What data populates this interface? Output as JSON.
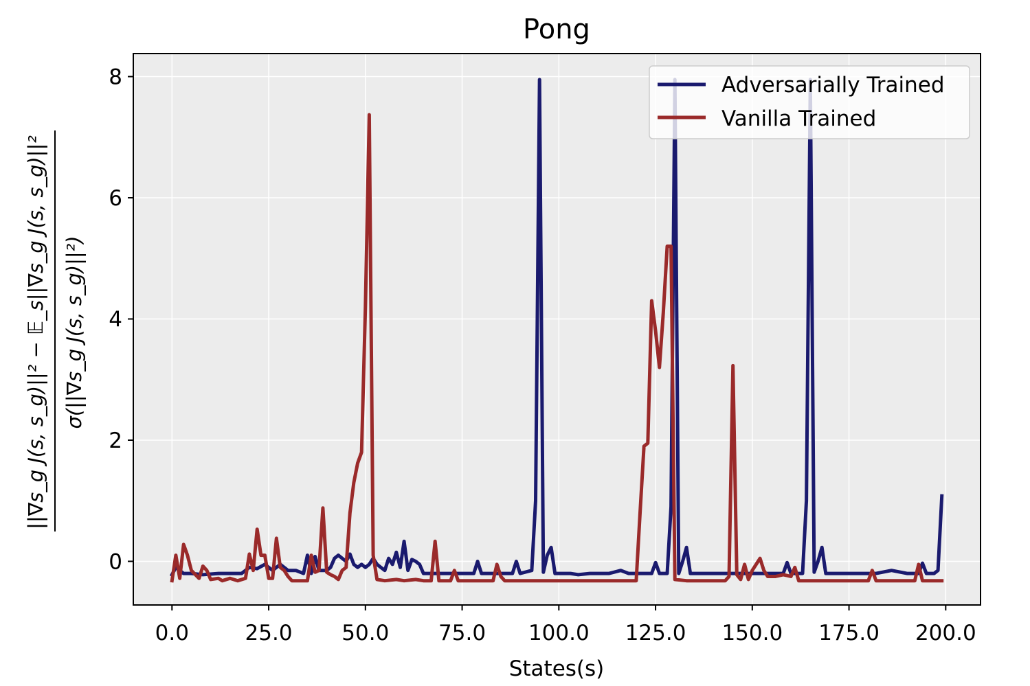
{
  "chart_data": {
    "type": "line",
    "title": "Pong",
    "xlabel": "States(s)",
    "ylabel": {
      "numerator": "||∇s_g J(s, s_g)||² − 𝔼_s||∇s_g J(s, s_g)||²",
      "denominator": "σ(||∇s_g J(s, s_g)||²)"
    },
    "xlim": [
      -10,
      209
    ],
    "ylim": [
      -0.72,
      8.38
    ],
    "xticks": [
      0,
      25,
      50,
      75,
      100,
      125,
      150,
      175,
      200
    ],
    "xtick_labels": [
      "0.0",
      "25.0",
      "50.0",
      "75.0",
      "100.0",
      "125.0",
      "150.0",
      "175.0",
      "200.0"
    ],
    "yticks": [
      0,
      2,
      4,
      6,
      8
    ],
    "ytick_labels": [
      "0",
      "2",
      "4",
      "6",
      "8"
    ],
    "grid": true,
    "legend_position": "top-right",
    "series": [
      {
        "name": "Adversarially Trained",
        "color": "#1a1a6e",
        "points": [
          [
            0,
            -0.22
          ],
          [
            1,
            -0.1
          ],
          [
            2,
            -0.15
          ],
          [
            3,
            -0.2
          ],
          [
            5,
            -0.2
          ],
          [
            8,
            -0.22
          ],
          [
            12,
            -0.2
          ],
          [
            16,
            -0.2
          ],
          [
            18,
            -0.2
          ],
          [
            20,
            -0.1
          ],
          [
            22,
            -0.12
          ],
          [
            24,
            -0.05
          ],
          [
            26,
            -0.15
          ],
          [
            28,
            -0.05
          ],
          [
            30,
            -0.15
          ],
          [
            32,
            -0.15
          ],
          [
            34,
            -0.2
          ],
          [
            35,
            0.1
          ],
          [
            36,
            -0.2
          ],
          [
            37,
            0.08
          ],
          [
            38,
            -0.15
          ],
          [
            40,
            -0.15
          ],
          [
            41,
            -0.1
          ],
          [
            42,
            0.05
          ],
          [
            43,
            0.1
          ],
          [
            44,
            0.05
          ],
          [
            45,
            0.0
          ],
          [
            46,
            0.12
          ],
          [
            47,
            -0.05
          ],
          [
            48,
            -0.1
          ],
          [
            49,
            -0.05
          ],
          [
            50,
            -0.1
          ],
          [
            51,
            -0.05
          ],
          [
            52,
            0.05
          ],
          [
            53,
            -0.05
          ],
          [
            54,
            -0.1
          ],
          [
            55,
            -0.15
          ],
          [
            56,
            0.05
          ],
          [
            57,
            -0.05
          ],
          [
            58,
            0.15
          ],
          [
            59,
            -0.1
          ],
          [
            60,
            0.33
          ],
          [
            61,
            -0.15
          ],
          [
            62,
            0.03
          ],
          [
            63,
            0.0
          ],
          [
            64,
            -0.05
          ],
          [
            65,
            -0.2
          ],
          [
            70,
            -0.2
          ],
          [
            75,
            -0.2
          ],
          [
            78,
            -0.2
          ],
          [
            79,
            0.0
          ],
          [
            80,
            -0.2
          ],
          [
            85,
            -0.2
          ],
          [
            88,
            -0.2
          ],
          [
            89,
            -0.0
          ],
          [
            90,
            -0.2
          ],
          [
            93,
            -0.15
          ],
          [
            94,
            1.0
          ],
          [
            95,
            7.95
          ],
          [
            96,
            -0.18
          ],
          [
            97,
            0.1
          ],
          [
            98,
            0.23
          ],
          [
            99,
            -0.2
          ],
          [
            103,
            -0.2
          ],
          [
            105,
            -0.22
          ],
          [
            108,
            -0.2
          ],
          [
            110,
            -0.2
          ],
          [
            113,
            -0.2
          ],
          [
            116,
            -0.15
          ],
          [
            118,
            -0.2
          ],
          [
            122,
            -0.2
          ],
          [
            124,
            -0.2
          ],
          [
            125,
            -0.02
          ],
          [
            126,
            -0.2
          ],
          [
            128,
            -0.2
          ],
          [
            129,
            0.9
          ],
          [
            130,
            7.95
          ],
          [
            131,
            -0.2
          ],
          [
            132,
            0.0
          ],
          [
            133,
            0.23
          ],
          [
            134,
            -0.2
          ],
          [
            140,
            -0.2
          ],
          [
            143,
            -0.2
          ],
          [
            146,
            -0.2
          ],
          [
            150,
            -0.2
          ],
          [
            155,
            -0.2
          ],
          [
            158,
            -0.2
          ],
          [
            159,
            -0.02
          ],
          [
            160,
            -0.2
          ],
          [
            163,
            -0.2
          ],
          [
            164,
            1.0
          ],
          [
            165,
            7.95
          ],
          [
            166,
            -0.18
          ],
          [
            167,
            0.0
          ],
          [
            168,
            0.23
          ],
          [
            169,
            -0.2
          ],
          [
            175,
            -0.2
          ],
          [
            178,
            -0.2
          ],
          [
            182,
            -0.2
          ],
          [
            186,
            -0.15
          ],
          [
            190,
            -0.2
          ],
          [
            193,
            -0.2
          ],
          [
            194,
            -0.03
          ],
          [
            195,
            -0.2
          ],
          [
            197,
            -0.2
          ],
          [
            198,
            -0.15
          ],
          [
            199,
            1.08
          ]
        ]
      },
      {
        "name": "Vanilla Trained",
        "color": "#9a2a2a",
        "points": [
          [
            0,
            -0.32
          ],
          [
            1,
            0.1
          ],
          [
            2,
            -0.28
          ],
          [
            3,
            0.28
          ],
          [
            4,
            0.1
          ],
          [
            5,
            -0.15
          ],
          [
            7,
            -0.28
          ],
          [
            8,
            -0.08
          ],
          [
            9,
            -0.15
          ],
          [
            10,
            -0.3
          ],
          [
            12,
            -0.28
          ],
          [
            13,
            -0.32
          ],
          [
            15,
            -0.28
          ],
          [
            17,
            -0.32
          ],
          [
            19,
            -0.28
          ],
          [
            20,
            0.12
          ],
          [
            21,
            -0.15
          ],
          [
            22,
            0.53
          ],
          [
            23,
            0.1
          ],
          [
            24,
            0.1
          ],
          [
            25,
            -0.28
          ],
          [
            26,
            -0.28
          ],
          [
            27,
            0.38
          ],
          [
            28,
            -0.1
          ],
          [
            29,
            -0.15
          ],
          [
            30,
            -0.25
          ],
          [
            31,
            -0.32
          ],
          [
            35,
            -0.32
          ],
          [
            36,
            0.1
          ],
          [
            37,
            -0.18
          ],
          [
            38,
            -0.15
          ],
          [
            39,
            0.88
          ],
          [
            40,
            -0.18
          ],
          [
            41,
            -0.22
          ],
          [
            42,
            -0.25
          ],
          [
            43,
            -0.3
          ],
          [
            44,
            -0.15
          ],
          [
            45,
            -0.1
          ],
          [
            46,
            0.8
          ],
          [
            47,
            1.3
          ],
          [
            48,
            1.62
          ],
          [
            49,
            1.8
          ],
          [
            50,
            4.2
          ],
          [
            51,
            7.37
          ],
          [
            52,
            0.1
          ],
          [
            53,
            -0.3
          ],
          [
            55,
            -0.32
          ],
          [
            58,
            -0.3
          ],
          [
            60,
            -0.32
          ],
          [
            63,
            -0.3
          ],
          [
            65,
            -0.32
          ],
          [
            67,
            -0.32
          ],
          [
            68,
            0.33
          ],
          [
            69,
            -0.32
          ],
          [
            72,
            -0.32
          ],
          [
            73,
            -0.15
          ],
          [
            74,
            -0.32
          ],
          [
            76,
            -0.32
          ],
          [
            80,
            -0.32
          ],
          [
            83,
            -0.32
          ],
          [
            84,
            -0.05
          ],
          [
            85,
            -0.25
          ],
          [
            86,
            -0.32
          ],
          [
            90,
            -0.32
          ],
          [
            100,
            -0.32
          ],
          [
            110,
            -0.32
          ],
          [
            120,
            -0.32
          ],
          [
            121,
            0.8
          ],
          [
            122,
            1.9
          ],
          [
            123,
            1.95
          ],
          [
            124,
            4.3
          ],
          [
            125,
            3.8
          ],
          [
            126,
            3.2
          ],
          [
            127,
            4.1
          ],
          [
            128,
            5.2
          ],
          [
            129,
            5.2
          ],
          [
            130,
            -0.3
          ],
          [
            133,
            -0.32
          ],
          [
            140,
            -0.32
          ],
          [
            143,
            -0.32
          ],
          [
            144,
            -0.25
          ],
          [
            145,
            3.23
          ],
          [
            146,
            -0.22
          ],
          [
            147,
            -0.3
          ],
          [
            148,
            -0.05
          ],
          [
            149,
            -0.3
          ],
          [
            150,
            -0.15
          ],
          [
            152,
            0.05
          ],
          [
            153,
            -0.15
          ],
          [
            154,
            -0.25
          ],
          [
            156,
            -0.25
          ],
          [
            158,
            -0.22
          ],
          [
            160,
            -0.25
          ],
          [
            161,
            -0.1
          ],
          [
            162,
            -0.32
          ],
          [
            170,
            -0.32
          ],
          [
            175,
            -0.32
          ],
          [
            180,
            -0.32
          ],
          [
            181,
            -0.15
          ],
          [
            182,
            -0.32
          ],
          [
            190,
            -0.32
          ],
          [
            192,
            -0.32
          ],
          [
            193,
            -0.05
          ],
          [
            194,
            -0.32
          ],
          [
            199,
            -0.32
          ]
        ]
      }
    ]
  }
}
